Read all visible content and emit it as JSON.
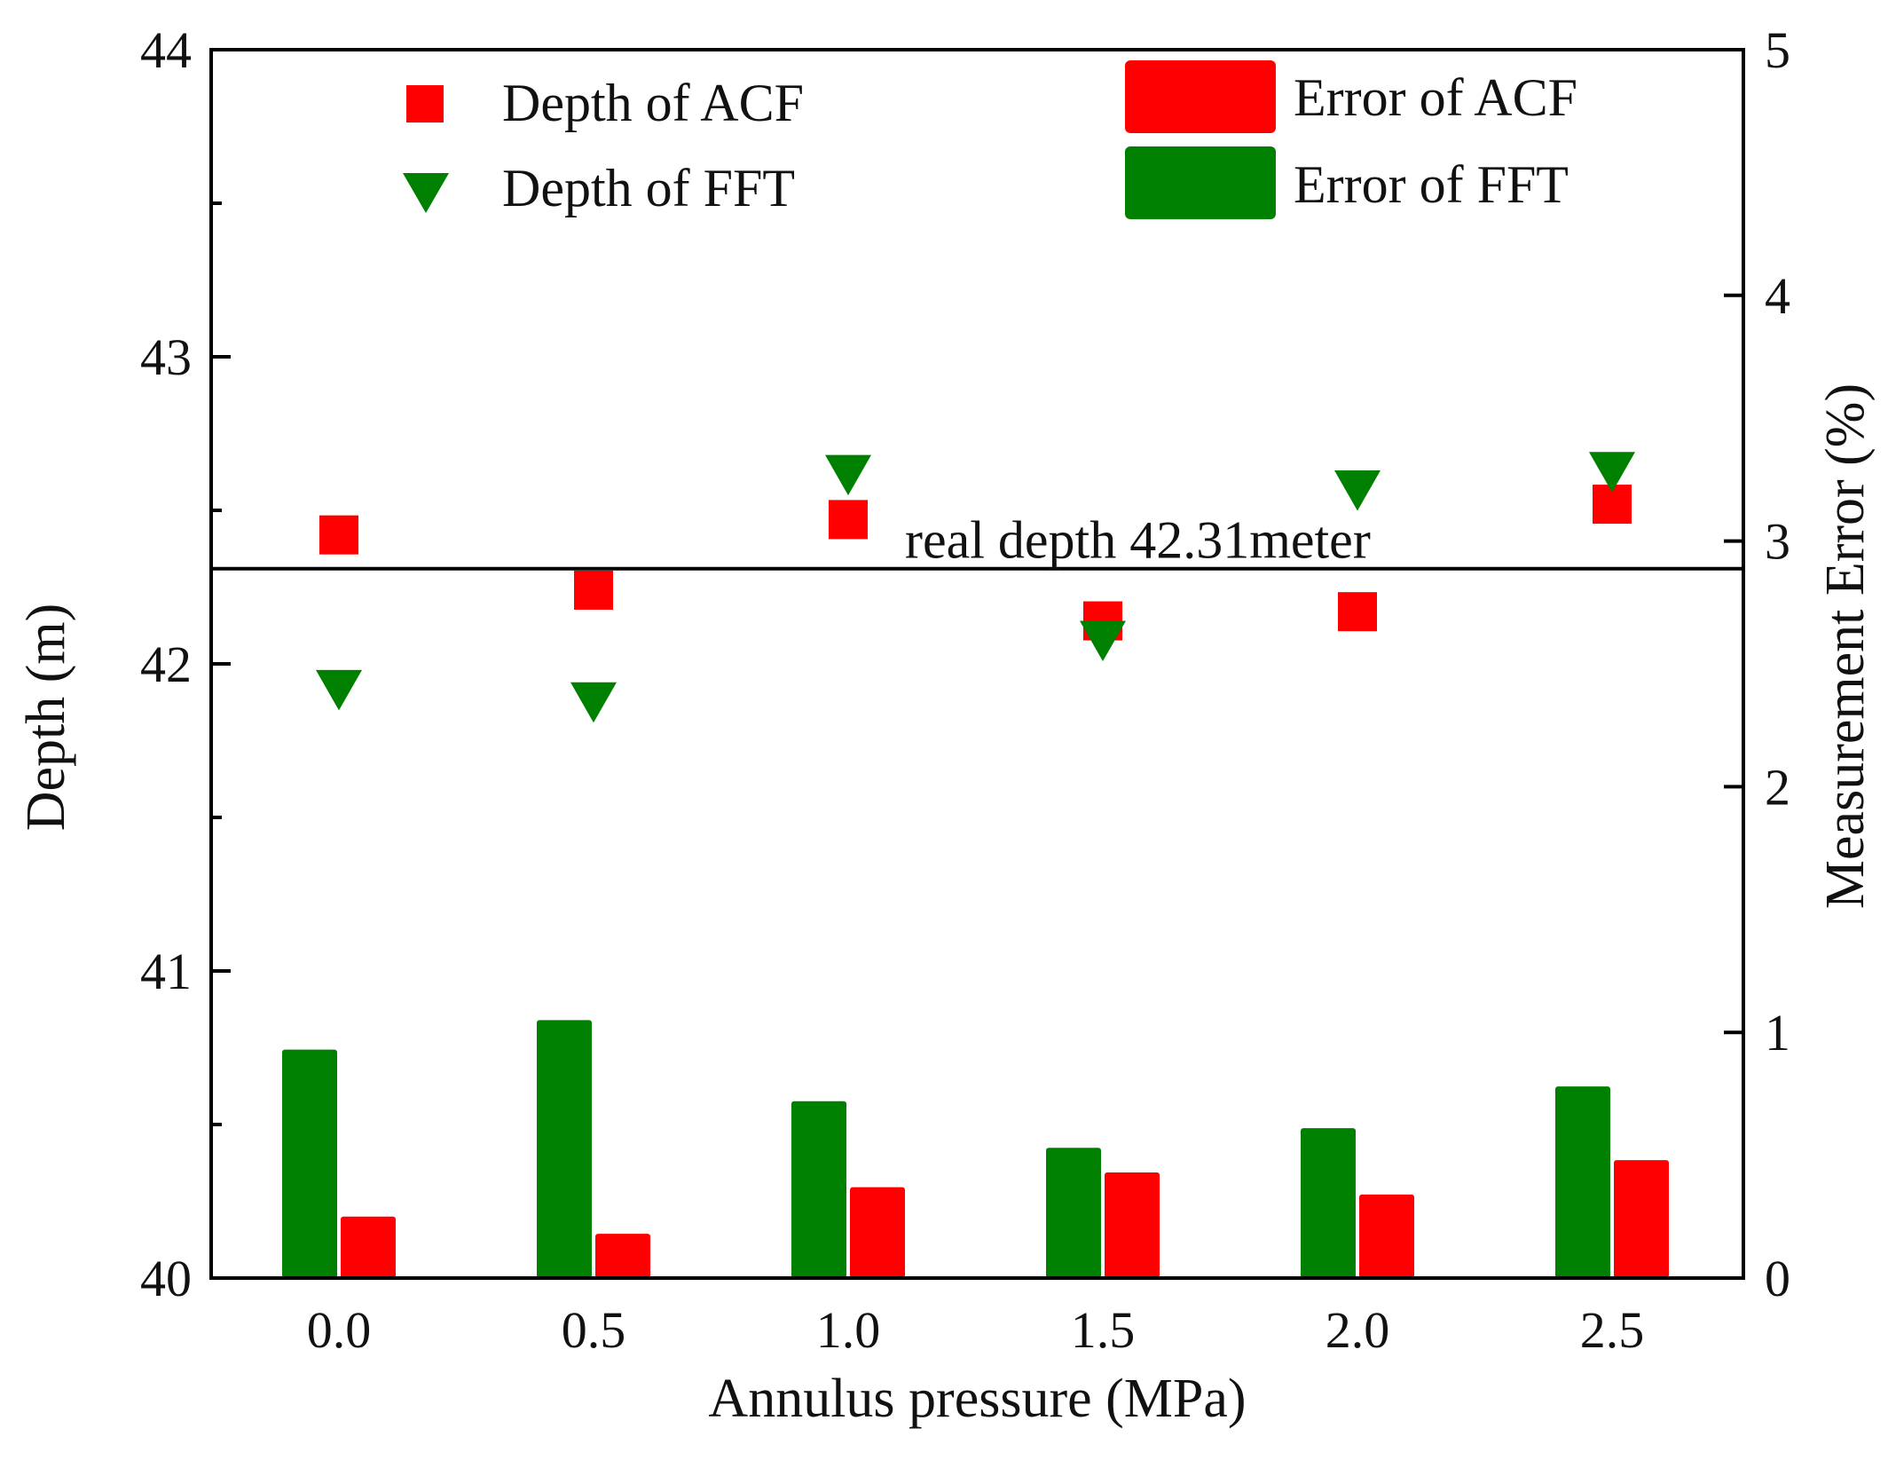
{
  "chart_data": {
    "type": "bar+scatter",
    "x": [
      0.0,
      0.5,
      1.0,
      1.5,
      2.0,
      2.5
    ],
    "x_tick_labels": [
      "0.0",
      "0.5",
      "1.0",
      "1.5",
      "2.0",
      "2.5"
    ],
    "xlabel": "Annulus pressure (MPa)",
    "ylabel_left": "Depth (m)",
    "ylabel_right": "Measurement Error (%)",
    "ylim_left": [
      40,
      44
    ],
    "ylim_right": [
      0,
      5
    ],
    "left_ticks": [
      40,
      41,
      42,
      43,
      44
    ],
    "right_ticks": [
      0,
      1,
      2,
      3,
      4,
      5
    ],
    "series": [
      {
        "name": "Depth of ACF",
        "kind": "scatter",
        "marker": "square",
        "axis": "left",
        "color": "#ff0000",
        "values": [
          42.42,
          42.24,
          42.47,
          42.14,
          42.17,
          42.52
        ]
      },
      {
        "name": "Depth of FFT",
        "kind": "scatter",
        "marker": "triangle-down",
        "axis": "left",
        "color": "#008000",
        "values": [
          41.92,
          41.88,
          42.62,
          42.08,
          42.57,
          42.63
        ]
      },
      {
        "name": "Error of ACF",
        "kind": "bar",
        "axis": "right",
        "color": "#ff0000",
        "values": [
          0.25,
          0.18,
          0.37,
          0.43,
          0.34,
          0.48
        ]
      },
      {
        "name": "Error of FFT",
        "kind": "bar",
        "axis": "right",
        "color": "#008000",
        "values": [
          0.93,
          1.05,
          0.72,
          0.53,
          0.61,
          0.78
        ]
      }
    ],
    "reference_line": {
      "value": 42.31,
      "axis": "left",
      "label": "real depth 42.31meter"
    },
    "legend": [
      {
        "label": "Depth of ACF",
        "series": 0
      },
      {
        "label": "Depth of FFT",
        "series": 1
      },
      {
        "label": "Error of ACF",
        "series": 2
      },
      {
        "label": "Error of FFT",
        "series": 3
      }
    ],
    "grid": false,
    "legend_position": "top"
  }
}
